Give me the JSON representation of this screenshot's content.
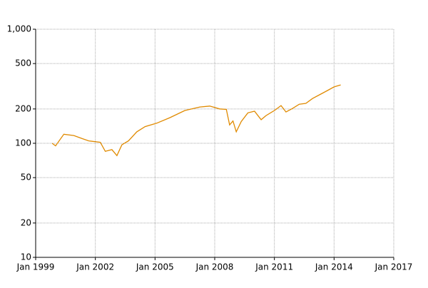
{
  "chart_data": {
    "type": "line",
    "x": [
      "1999-11",
      "2000-01",
      "2000-06",
      "2000-12",
      "2001-05",
      "2001-09",
      "2002-04",
      "2002-07",
      "2002-11",
      "2003-02",
      "2003-05",
      "2003-09",
      "2004-02",
      "2004-07",
      "2005-02",
      "2005-10",
      "2006-07",
      "2007-04",
      "2007-10",
      "2008-04",
      "2008-08",
      "2008-10",
      "2008-12",
      "2009-02",
      "2009-05",
      "2009-09",
      "2010-01",
      "2010-05",
      "2010-08",
      "2011-01",
      "2011-05",
      "2011-08",
      "2011-12",
      "2012-04",
      "2012-08",
      "2012-12",
      "2013-05",
      "2013-09",
      "2014-01",
      "2014-05"
    ],
    "series": [
      {
        "color": "#e08a00",
        "values": [
          100,
          95,
          120,
          117,
          110,
          105,
          102,
          85,
          88,
          78,
          97,
          105,
          126,
          140,
          150,
          168,
          194,
          208,
          212,
          200,
          198,
          145,
          157,
          126,
          155,
          185,
          191,
          161,
          175,
          194,
          214,
          188,
          202,
          220,
          224,
          247,
          270,
          290,
          312,
          325
        ]
      }
    ],
    "xlim": [
      "1999-01",
      "2017-01"
    ],
    "xticks": [
      {
        "value": "1999-01",
        "label": "Jan 1999"
      },
      {
        "value": "2002-01",
        "label": "Jan 2002"
      },
      {
        "value": "2005-01",
        "label": "Jan 2005"
      },
      {
        "value": "2008-01",
        "label": "Jan 2008"
      },
      {
        "value": "2011-01",
        "label": "Jan 2011"
      },
      {
        "value": "2014-01",
        "label": "Jan 2014"
      },
      {
        "value": "2017-01",
        "label": "Jan 2017"
      }
    ],
    "ylim": [
      10,
      1000
    ],
    "yticks": [
      10,
      20,
      50,
      100,
      200,
      500,
      {
        "value": 1000,
        "label": "1,000"
      }
    ],
    "log_y": true,
    "grid": true
  }
}
